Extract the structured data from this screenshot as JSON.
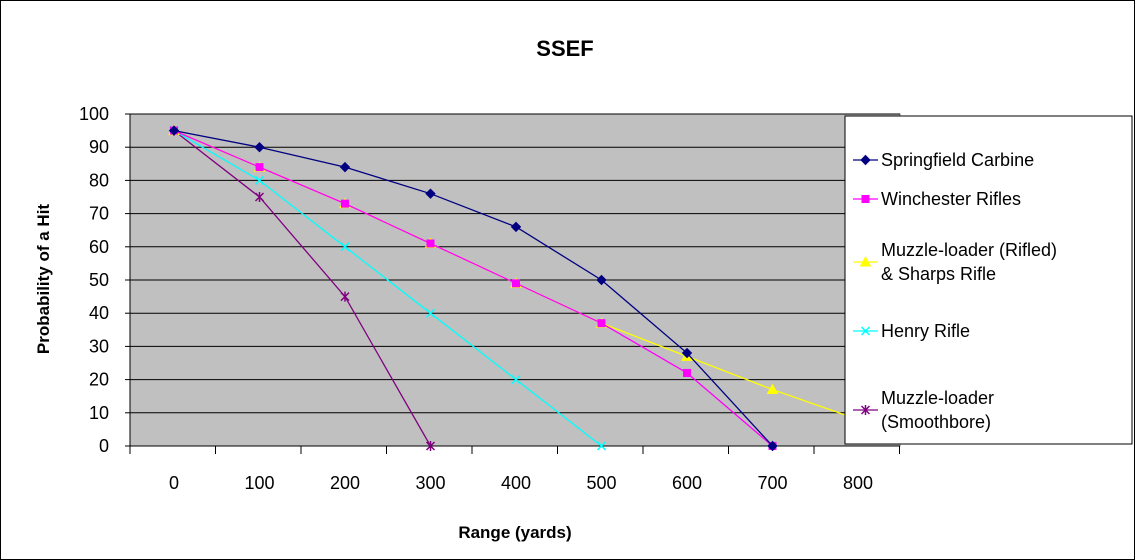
{
  "chart_data": {
    "type": "line",
    "title": "SSEF",
    "xlabel": "Range (yards)",
    "ylabel": "Probability of a Hit",
    "x": [
      0,
      100,
      200,
      300,
      400,
      500,
      600,
      700,
      800
    ],
    "x_tick_labels": [
      "0",
      "100",
      "200",
      "300",
      "400",
      "500",
      "600",
      "700",
      "800"
    ],
    "y_tick_labels": [
      "0",
      "10",
      "20",
      "30",
      "40",
      "50",
      "60",
      "70",
      "80",
      "90",
      "100"
    ],
    "ylim": [
      0,
      100
    ],
    "grid": "horizontal",
    "legend_position": "right",
    "series": [
      {
        "name": "Springfield Carbine",
        "legend_lines": [
          "Springfield Carbine"
        ],
        "color": "#000080",
        "marker": "diamond",
        "values": [
          95,
          90,
          84,
          76,
          66,
          50,
          28,
          0,
          null
        ]
      },
      {
        "name": "Winchester Rifles",
        "legend_lines": [
          "Winchester Rifles"
        ],
        "color": "#ff00ff",
        "marker": "square",
        "values": [
          95,
          84,
          73,
          61,
          49,
          37,
          22,
          0,
          null
        ]
      },
      {
        "name": "Muzzle-loader (Rifled) & Sharps Rifle",
        "legend_lines": [
          "Muzzle-loader (Rifled)",
          "& Sharps Rifle"
        ],
        "color": "#ffff00",
        "marker": "triangle",
        "values": [
          95,
          84,
          73,
          61,
          49,
          37,
          27,
          17,
          8
        ]
      },
      {
        "name": "Henry Rifle",
        "legend_lines": [
          "Henry Rifle"
        ],
        "color": "#00ffff",
        "marker": "x",
        "values": [
          95,
          80,
          60,
          40,
          20,
          0,
          null,
          null,
          null
        ]
      },
      {
        "name": "Muzzle-loader (Smoothbore)",
        "legend_lines": [
          "Muzzle-loader",
          "(Smoothbore)"
        ],
        "color": "#800080",
        "marker": "star",
        "values": [
          95,
          75,
          45,
          0,
          null,
          null,
          null,
          null,
          null
        ]
      }
    ]
  }
}
